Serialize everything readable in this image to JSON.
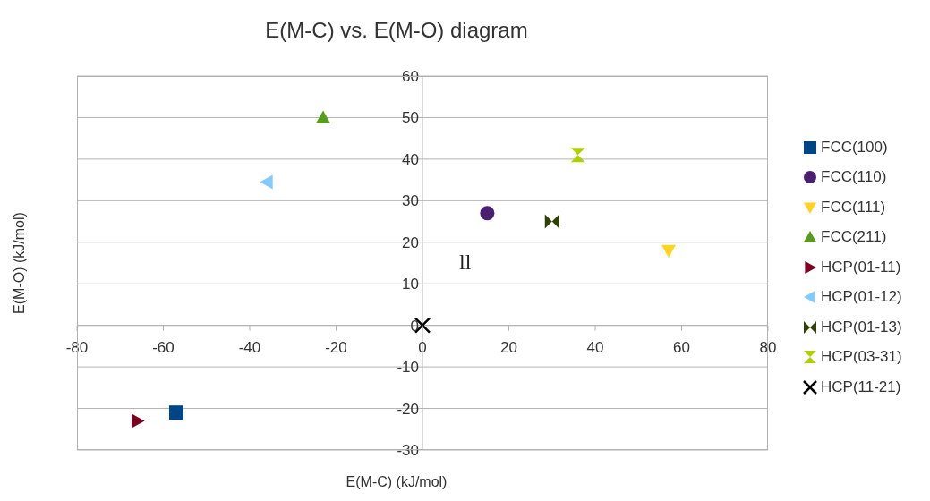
{
  "chart_data": {
    "type": "scatter",
    "title": "E(M-C) vs. E(M-O) diagram",
    "xlabel": "E(M-C) (kJ/mol)",
    "ylabel": "E(M-O) (kJ/mol)",
    "xlim": [
      -80,
      80
    ],
    "xticks": [
      -80,
      -60,
      -40,
      -20,
      0,
      20,
      40,
      60,
      80
    ],
    "ylim": [
      -30,
      60
    ],
    "yticks": [
      -30,
      -20,
      -10,
      0,
      10,
      20,
      30,
      40,
      50,
      60
    ],
    "grid": "y",
    "legend": "right",
    "annotations": [
      "ll"
    ],
    "series": [
      {
        "name": "FCC(100)",
        "color": "#004586",
        "marker": "square",
        "x": [
          -57
        ],
        "values": [
          -21
        ]
      },
      {
        "name": "FCC(110)",
        "color": "#4b1f6f",
        "marker": "circle",
        "x": [
          15
        ],
        "values": [
          27
        ]
      },
      {
        "name": "FCC(111)",
        "color": "#ffd320",
        "marker": "triangle-down",
        "x": [
          57
        ],
        "values": [
          18
        ]
      },
      {
        "name": "FCC(211)",
        "color": "#579d1c",
        "marker": "triangle",
        "x": [
          -23
        ],
        "values": [
          50
        ]
      },
      {
        "name": "HCP(01-11)",
        "color": "#7e0021",
        "marker": "triangle-right",
        "x": [
          -66
        ],
        "values": [
          -23
        ]
      },
      {
        "name": "HCP(01-12)",
        "color": "#83caff",
        "marker": "triangle-left",
        "x": [
          -36
        ],
        "values": [
          34.5
        ]
      },
      {
        "name": "HCP(01-13)",
        "color": "#314004",
        "x": [
          30
        ],
        "values": [
          25
        ]
      },
      {
        "name": "HCP(03-31)",
        "color": "#aecf00",
        "x": [
          36
        ],
        "values": [
          41
        ]
      },
      {
        "name": "HCP(11-21)",
        "color": "#000000",
        "marker": "cross",
        "x": [
          0
        ],
        "values": [
          0
        ]
      }
    ]
  }
}
